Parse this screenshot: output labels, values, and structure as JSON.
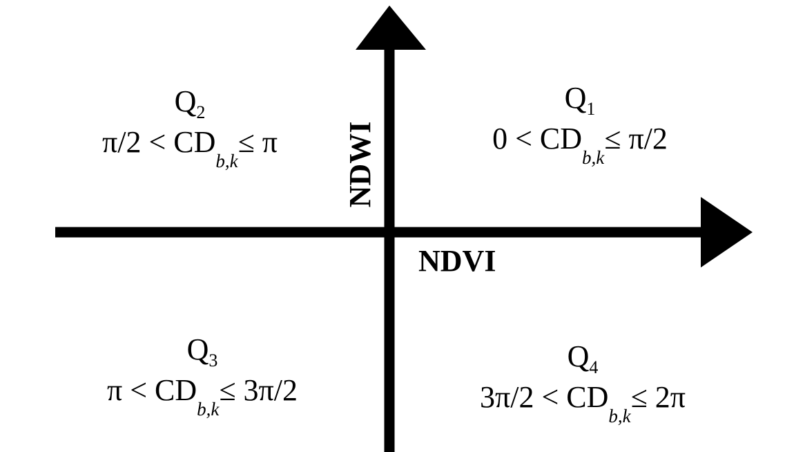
{
  "axes": {
    "x_label": "NDVI",
    "y_label": "NDWI"
  },
  "quadrants": [
    {
      "id": "Q1",
      "letter": "Q",
      "index": "1",
      "cond_before": "0 <",
      "cd": "CD",
      "sub": "b,k",
      "leq": "≤",
      "cond_after": "π/2"
    },
    {
      "id": "Q2",
      "letter": "Q",
      "index": "2",
      "cond_before": "π/2 <",
      "cd": "CD",
      "sub": "b,k",
      "leq": "≤",
      "cond_after": "π"
    },
    {
      "id": "Q3",
      "letter": "Q",
      "index": "3",
      "cond_before": "π <",
      "cd": "CD",
      "sub": "b,k",
      "leq": "≤",
      "cond_after": "3π/2"
    },
    {
      "id": "Q4",
      "letter": "Q",
      "index": "4",
      "cond_before": "3π/2 <",
      "cd": "CD",
      "sub": "b,k",
      "leq": "≤",
      "cond_after": "2π"
    }
  ]
}
